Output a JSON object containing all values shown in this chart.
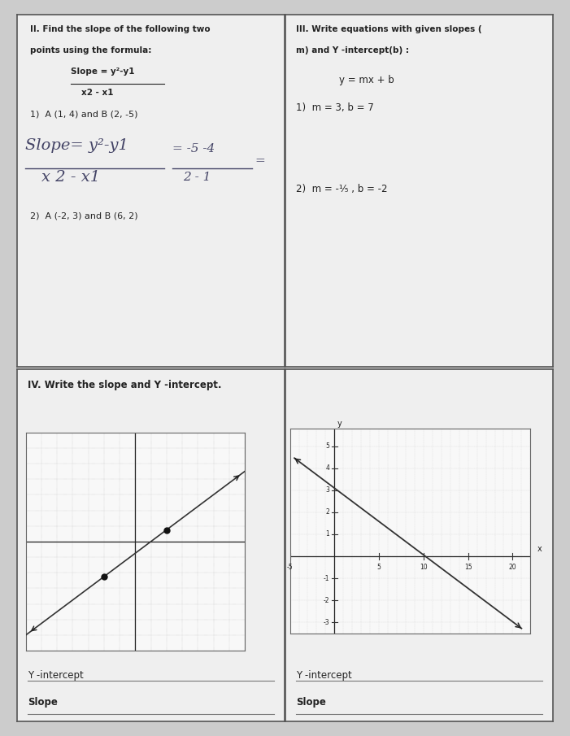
{
  "bg_color": "#cccccc",
  "paper_color": "#efefef",
  "cell_border_color": "#555555",
  "text_color": "#222222",
  "handwrite_color": "#444466",
  "line_color": "#333333",
  "dot_color": "#111111",
  "graph1_p1": [
    -3,
    -3
  ],
  "graph1_p2": [
    3,
    1.5
  ],
  "graph2_m": -0.304,
  "graph2_b": 3.1,
  "graph2_xticks": [
    -5,
    5,
    10,
    15,
    20
  ],
  "graph2_yticks": [
    -3,
    -2,
    -1,
    1,
    2,
    3,
    4,
    5
  ]
}
